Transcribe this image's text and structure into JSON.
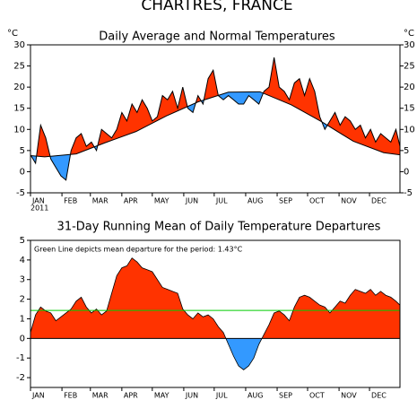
{
  "chart_data": [
    {
      "type": "area-vs-normal",
      "title": "CHARTRES, FRANCE",
      "subtitle": "Daily Average and Normal Temperatures",
      "y_unit": "°C",
      "year_label": "2011",
      "xlim": [
        1,
        365
      ],
      "xticks": [
        {
          "value": 1,
          "label": "JAN"
        },
        {
          "value": 32,
          "label": "FEB"
        },
        {
          "value": 60,
          "label": "MAR"
        },
        {
          "value": 91,
          "label": "APR"
        },
        {
          "value": 121,
          "label": "MAY"
        },
        {
          "value": 152,
          "label": "JUN"
        },
        {
          "value": 182,
          "label": "JUL"
        },
        {
          "value": 213,
          "label": "AUG"
        },
        {
          "value": 244,
          "label": "SEP"
        },
        {
          "value": 274,
          "label": "OCT"
        },
        {
          "value": 305,
          "label": "NOV"
        },
        {
          "value": 335,
          "label": "DEC"
        }
      ],
      "ylim": [
        -5,
        30
      ],
      "yticks": [
        -5,
        0,
        5,
        10,
        15,
        20,
        25,
        30
      ],
      "above_color": "#ff3300",
      "below_color": "#3399ff",
      "series": [
        {
          "name": "Daily Average",
          "color": "#000000",
          "x": [
            1,
            6,
            11,
            16,
            21,
            26,
            31,
            36,
            41,
            46,
            51,
            56,
            61,
            66,
            71,
            76,
            81,
            86,
            91,
            96,
            101,
            106,
            111,
            116,
            121,
            126,
            131,
            136,
            141,
            146,
            151,
            156,
            161,
            166,
            171,
            176,
            181,
            186,
            191,
            196,
            201,
            206,
            211,
            216,
            221,
            226,
            231,
            236,
            241,
            246,
            251,
            256,
            261,
            266,
            271,
            276,
            281,
            286,
            291,
            296,
            301,
            306,
            311,
            316,
            321,
            326,
            331,
            336,
            341,
            346,
            351,
            356,
            361,
            365
          ],
          "values": [
            4,
            2,
            11,
            8,
            3,
            1,
            -1,
            -2,
            5,
            8,
            9,
            6,
            7,
            5,
            10,
            9,
            8,
            10,
            14,
            12,
            16,
            14,
            17,
            15,
            12,
            13,
            18,
            17,
            19,
            15,
            20,
            15,
            14,
            18,
            16,
            22,
            24,
            18,
            17,
            18,
            17,
            16,
            16,
            18,
            17,
            16,
            19,
            20,
            27,
            20,
            19,
            17,
            21,
            22,
            18,
            22,
            19,
            13,
            10,
            12,
            14,
            11,
            13,
            12,
            10,
            11,
            8,
            10,
            7,
            9,
            8,
            7,
            10,
            6
          ]
        },
        {
          "name": "Normal",
          "color": "#000000",
          "x": [
            1,
            15,
            46,
            74,
            105,
            135,
            166,
            196,
            227,
            258,
            288,
            319,
            349,
            365
          ],
          "values": [
            3.8,
            3.5,
            4.2,
            6.8,
            9.5,
            13.2,
            16.5,
            18.8,
            18.9,
            15.8,
            11.8,
            7.2,
            4.5,
            4.0
          ]
        }
      ]
    },
    {
      "type": "running-mean",
      "title": "31-Day Running Mean of Daily Temperature Departures",
      "annotation": "Green Line depicts mean departure for the period: 1.43°C",
      "xlim": [
        1,
        365
      ],
      "xticks": [
        {
          "value": 1,
          "label": "JAN"
        },
        {
          "value": 32,
          "label": "FEB"
        },
        {
          "value": 60,
          "label": "MAR"
        },
        {
          "value": 91,
          "label": "APR"
        },
        {
          "value": 121,
          "label": "MAY"
        },
        {
          "value": 152,
          "label": "JUN"
        },
        {
          "value": 182,
          "label": "JUL"
        },
        {
          "value": 213,
          "label": "AUG"
        },
        {
          "value": 244,
          "label": "SEP"
        },
        {
          "value": 274,
          "label": "OCT"
        },
        {
          "value": 305,
          "label": "NOV"
        },
        {
          "value": 335,
          "label": "DEC"
        }
      ],
      "ylim": [
        -2.5,
        5
      ],
      "yticks": [
        -2,
        -1,
        0,
        1,
        2,
        3,
        4,
        5
      ],
      "above_color": "#ff3300",
      "below_color": "#3399ff",
      "mean": 1.43,
      "mean_color": "#00cc00",
      "x": [
        1,
        6,
        11,
        16,
        21,
        26,
        31,
        36,
        41,
        46,
        51,
        56,
        61,
        66,
        71,
        76,
        81,
        86,
        91,
        96,
        101,
        106,
        111,
        116,
        121,
        126,
        131,
        136,
        141,
        146,
        151,
        156,
        161,
        166,
        171,
        176,
        181,
        186,
        191,
        196,
        201,
        206,
        211,
        216,
        221,
        226,
        231,
        236,
        241,
        246,
        251,
        256,
        261,
        266,
        271,
        276,
        281,
        286,
        291,
        296,
        301,
        306,
        311,
        316,
        321,
        326,
        331,
        336,
        341,
        346,
        351,
        356,
        361,
        365
      ],
      "values": [
        0.3,
        1.2,
        1.6,
        1.4,
        1.3,
        0.9,
        1.1,
        1.3,
        1.5,
        1.9,
        2.1,
        1.6,
        1.3,
        1.5,
        1.2,
        1.4,
        2.3,
        3.2,
        3.6,
        3.7,
        4.1,
        3.9,
        3.6,
        3.5,
        3.4,
        3.0,
        2.6,
        2.5,
        2.4,
        2.3,
        1.5,
        1.2,
        1.0,
        1.3,
        1.1,
        1.2,
        1.0,
        0.6,
        0.3,
        -0.3,
        -0.9,
        -1.4,
        -1.6,
        -1.4,
        -1.0,
        -0.3,
        0.2,
        0.7,
        1.3,
        1.4,
        1.2,
        0.9,
        1.6,
        2.1,
        2.2,
        2.1,
        1.9,
        1.7,
        1.6,
        1.3,
        1.6,
        1.9,
        1.8,
        2.2,
        2.5,
        2.4,
        2.3,
        2.5,
        2.2,
        2.4,
        2.2,
        2.1,
        1.9,
        1.7
      ]
    }
  ]
}
